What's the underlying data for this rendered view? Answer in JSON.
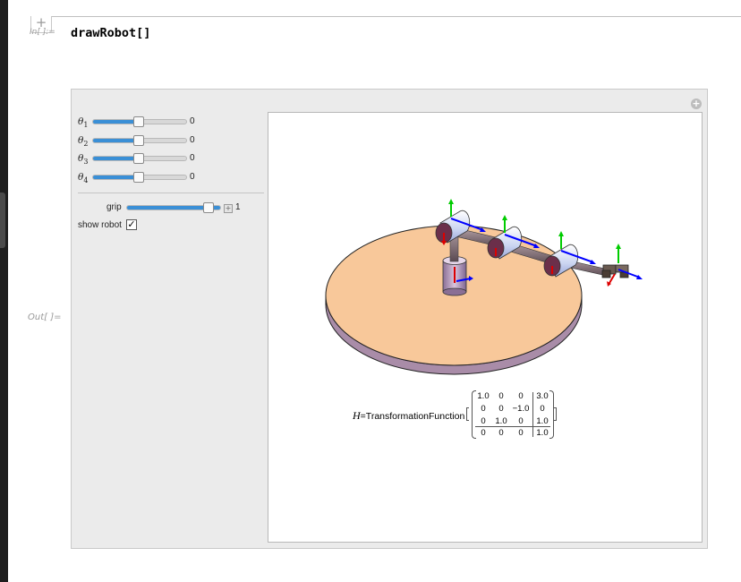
{
  "notebook": {
    "input_label": "In[ ]:=",
    "input_code": "drawRobot[]",
    "output_label": "Out[ ]=",
    "cell_add_button": "+"
  },
  "manipulate": {
    "sliders": [
      {
        "symbol": "θ",
        "index": "1",
        "value": "0",
        "fraction": 0.5
      },
      {
        "symbol": "θ",
        "index": "2",
        "value": "0",
        "fraction": 0.5
      },
      {
        "symbol": "θ",
        "index": "3",
        "value": "0",
        "fraction": 0.5
      },
      {
        "symbol": "θ",
        "index": "4",
        "value": "0",
        "fraction": 0.5
      }
    ],
    "grip": {
      "label": "grip",
      "value": "1",
      "fraction": 1.0
    },
    "show_robot": {
      "label": "show robot",
      "checked": true,
      "mark": "✓"
    },
    "options_icon": "+"
  },
  "output": {
    "formula_prefix_italic": "H",
    "formula_rest": "=TransformationFunction",
    "matrix": [
      [
        "1.0",
        "0",
        "0",
        "3.0"
      ],
      [
        "0",
        "0",
        "−1.0",
        "0"
      ],
      [
        "0",
        "1.0",
        "0",
        "1.0"
      ],
      [
        "0",
        "0",
        "0",
        "1.0"
      ]
    ]
  },
  "colors": {
    "slider_fill": "#3a8fd6",
    "base_top": "#f8c89a",
    "base_side": "#a98ca8",
    "axis_x": "#0000ff",
    "axis_y": "#00cc00",
    "axis_z": "#dd0000"
  }
}
